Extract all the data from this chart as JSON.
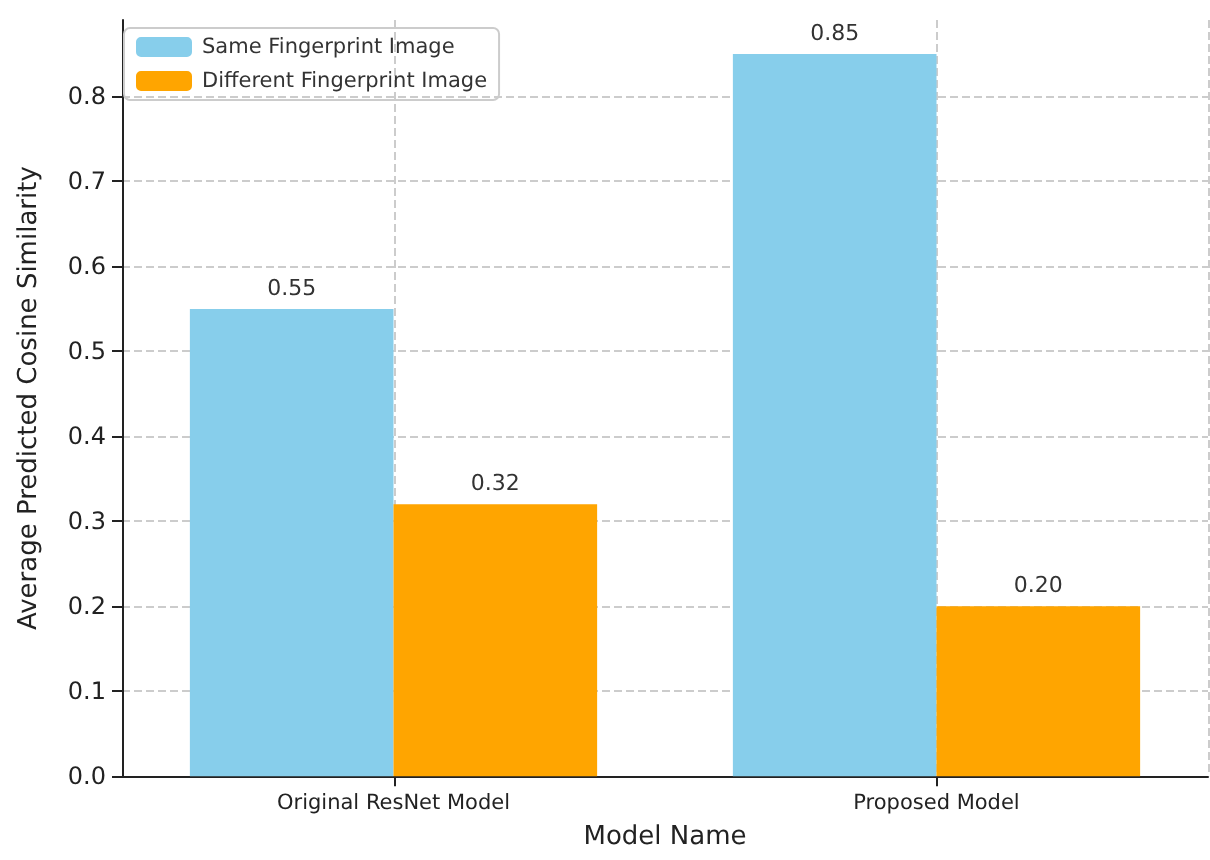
{
  "chart_data": {
    "type": "bar",
    "xlabel": "Model Name",
    "ylabel": "Average Predicted Cosine Similarity",
    "categories": [
      "Original ResNet Model",
      "Proposed Model"
    ],
    "series": [
      {
        "name": "Same Fingerprint Image",
        "color": "#87ceeb",
        "values": [
          0.55,
          0.85
        ],
        "value_labels": [
          "0.55",
          "0.85"
        ]
      },
      {
        "name": "Different Fingerprint Image",
        "color": "#ffa500",
        "values": [
          0.32,
          0.2
        ],
        "value_labels": [
          "0.32",
          "0.20"
        ]
      }
    ],
    "ylim": [
      0,
      0.89
    ],
    "yticks": [
      {
        "value": 0,
        "label": "0.0"
      },
      0.1,
      0.2,
      0.3,
      0.4,
      0.5,
      0.6,
      0.7,
      0.8
    ],
    "grid": true,
    "legend": "top left"
  }
}
